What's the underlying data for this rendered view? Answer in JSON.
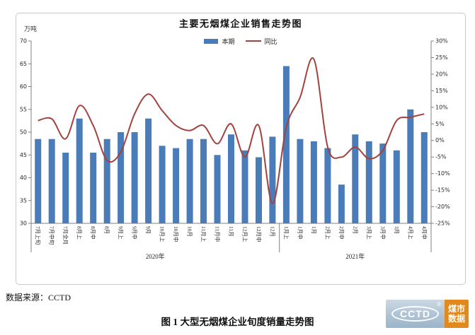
{
  "chart": {
    "title": "主要无烟煤企业销售走势图",
    "unit_label": "万吨",
    "legend": [
      {
        "label": "本期",
        "marker": "bar",
        "color": "#4A7CBA"
      },
      {
        "label": "同比",
        "marker": "line",
        "color": "#A5413C"
      }
    ]
  },
  "chart_data": {
    "type": "bar+line",
    "title": "主要无烟煤企业销售走势图",
    "categories": [
      "7月上旬",
      "7月中旬",
      "7月全月",
      "8月上",
      "8月中",
      "8月",
      "9月上",
      "9月中",
      "9月",
      "10月上",
      "10月中",
      "10月",
      "11月上",
      "11月中",
      "11月",
      "12月上",
      "12月中",
      "12月",
      "1月上",
      "1月中",
      "1月",
      "2月上",
      "2月中",
      "2月",
      "3月上",
      "3月中",
      "3月",
      "4月上",
      "4月中"
    ],
    "series": [
      {
        "name": "本期",
        "type": "bar",
        "axis": "left",
        "unit": "万吨",
        "color": "#4A7CBA",
        "values": [
          48.5,
          48.5,
          45.5,
          53,
          45.5,
          48.5,
          50,
          50,
          53,
          47,
          46.5,
          48.5,
          48.5,
          45,
          49.5,
          46,
          44.5,
          49,
          64.5,
          48.5,
          48,
          46.5,
          38.5,
          49.5,
          48,
          47.5,
          46,
          55,
          50
        ]
      },
      {
        "name": "同比",
        "type": "line",
        "axis": "right",
        "unit": "%",
        "color": "#A5413C",
        "values": [
          6,
          6.5,
          0.5,
          10.5,
          4.5,
          -6,
          -3.5,
          8,
          14,
          9,
          4.5,
          3,
          4.5,
          -1,
          5,
          -5,
          4.5,
          -19,
          4,
          13,
          24.5,
          -2,
          -5,
          -2,
          -5.5,
          -3,
          6,
          7,
          8
        ]
      }
    ],
    "left_axis": {
      "title": "万吨",
      "min": 30,
      "max": 70,
      "step": 5
    },
    "right_axis": {
      "min": -25,
      "max": 30,
      "step": 5,
      "suffix": "%"
    },
    "year_groups": [
      {
        "label": "2020年",
        "from": 0,
        "to": 17
      },
      {
        "label": "2021年",
        "from": 18,
        "to": 28
      }
    ],
    "grid": false,
    "legend_position": "top"
  },
  "footer": {
    "source": "数据来源：CCTD",
    "caption": "图 1 大型无烟煤企业旬度销量走势图"
  },
  "logo": {
    "brand": "CCTD",
    "registered": "®",
    "tagline": [
      "煤市",
      "数据"
    ],
    "left_bg": "#aec3d5",
    "right_bg": "#e2891e"
  }
}
